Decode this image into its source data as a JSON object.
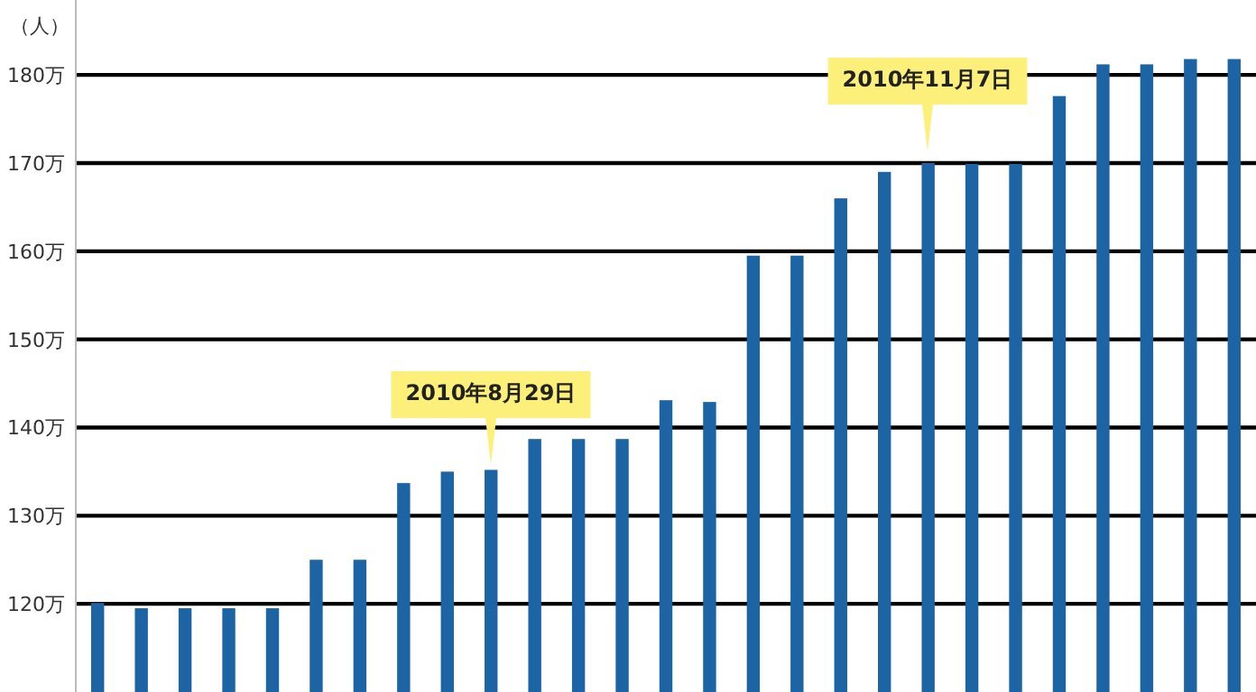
{
  "chart_data": {
    "type": "bar",
    "ylabel": "（人）",
    "categories": [
      null,
      null,
      null,
      null,
      null,
      null,
      null,
      null,
      null,
      null,
      null,
      null,
      null,
      null,
      null,
      null,
      null,
      null,
      null,
      null,
      null,
      null,
      null,
      null,
      null,
      null,
      null
    ],
    "values": [
      120.1,
      119.5,
      119.5,
      119.5,
      119.5,
      125,
      125,
      133.7,
      135,
      135.2,
      138.7,
      138.7,
      138.7,
      143.1,
      142.9,
      159.5,
      159.5,
      166,
      169,
      170,
      169.9,
      169.9,
      177.6,
      181.2,
      181.2,
      181.8,
      181.8
    ],
    "color": "#1c64a4",
    "ylim": [
      110,
      188.5
    ],
    "yticks": [
      {
        "value": 120,
        "label": "120万"
      },
      {
        "value": 130,
        "label": "130万"
      },
      {
        "value": 140,
        "label": "140万"
      },
      {
        "value": 150,
        "label": "150万"
      },
      {
        "value": 160,
        "label": "160万"
      },
      {
        "value": 170,
        "label": "170万"
      },
      {
        "value": 180,
        "label": "180万"
      }
    ],
    "grid": "y",
    "tick_labels": "y",
    "annotations": [
      "2010年8月29日",
      "2010年11月7日"
    ]
  }
}
